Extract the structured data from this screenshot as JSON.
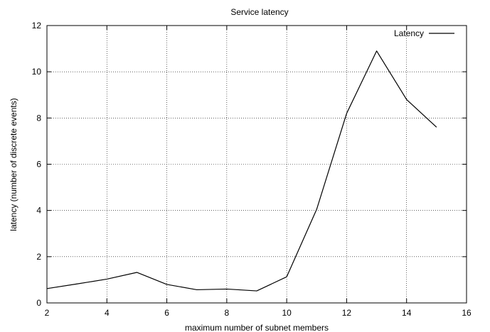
{
  "chart_data": {
    "type": "line",
    "title": "Service latency",
    "xlabel": "maximum number of subnet members",
    "ylabel": "latency (number of discrete events)",
    "xlim": [
      2,
      16
    ],
    "ylim": [
      0,
      12
    ],
    "xticks": [
      2,
      4,
      6,
      8,
      10,
      12,
      14,
      16
    ],
    "yticks": [
      0,
      2,
      4,
      6,
      8,
      10,
      12
    ],
    "grid": true,
    "legend_position": "top-right",
    "series": [
      {
        "name": "Latency",
        "color": "#000000",
        "x": [
          2,
          3,
          4,
          5,
          6,
          7,
          8,
          9,
          10,
          11,
          12,
          13,
          14,
          15
        ],
        "y": [
          0.62,
          0.82,
          1.03,
          1.32,
          0.8,
          0.57,
          0.6,
          0.52,
          1.13,
          4.05,
          8.2,
          10.9,
          8.8,
          7.6
        ]
      }
    ]
  }
}
